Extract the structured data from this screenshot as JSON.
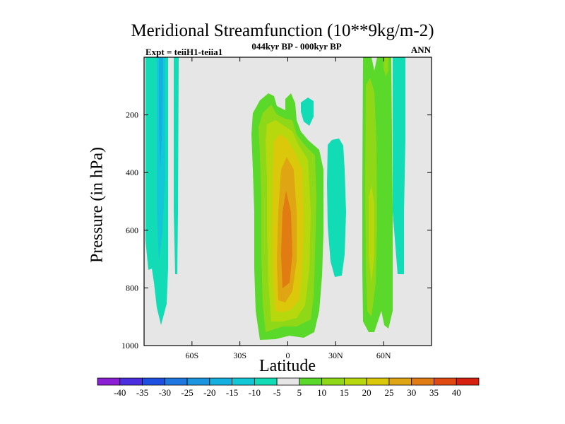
{
  "chart_data": {
    "type": "heatmap",
    "title": "Meridional Streamfunction (10**9kg/m-2)",
    "subtitle_left": "Expt = teiiH1-teiia1",
    "subtitle_center": "044kyr BP - 000kyr BP",
    "subtitle_right": "ANN",
    "xlabel": "Latitude",
    "ylabel": "Pressure (in hPa)",
    "x_ticks": [
      {
        "value": -60,
        "label": "60S"
      },
      {
        "value": -30,
        "label": "30S"
      },
      {
        "value": 0,
        "label": "0"
      },
      {
        "value": 30,
        "label": "30N"
      },
      {
        "value": 60,
        "label": "60N"
      }
    ],
    "y_ticks": [
      200,
      400,
      600,
      800,
      1000
    ],
    "xlim": [
      -90,
      90
    ],
    "ylim": [
      1000,
      0
    ],
    "grid": false,
    "missing_color": "#e6e6e6",
    "colorbar": {
      "labels": [
        "-40",
        "-35",
        "-30",
        "-25",
        "-20",
        "-15",
        "-10",
        "-5",
        "5",
        "10",
        "15",
        "20",
        "25",
        "30",
        "35",
        "40"
      ],
      "colors": [
        "#8b1fd6",
        "#4a2ee0",
        "#1d4fe0",
        "#1f78e0",
        "#1b95e0",
        "#14b0e0",
        "#12c8d6",
        "#12dcb6",
        "#e6e6e6",
        "#5ad92a",
        "#8fd818",
        "#b8d80e",
        "#dcc80a",
        "#e0a512",
        "#e07c12",
        "#e04a10",
        "#d8200e"
      ]
    }
  }
}
